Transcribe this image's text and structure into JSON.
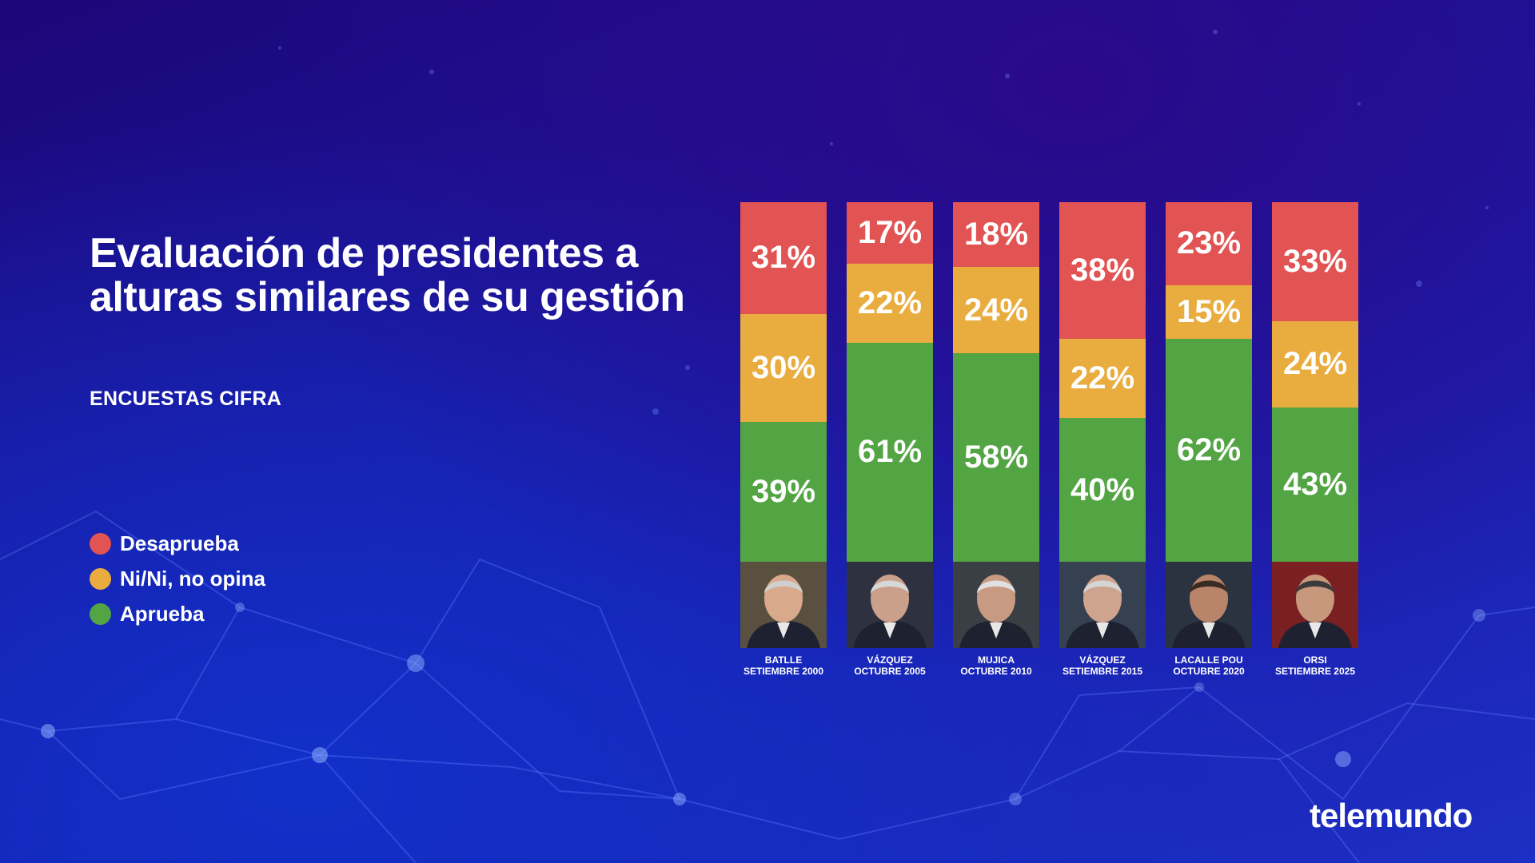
{
  "title": "Evaluación de presidentes a alturas similares de su gestión",
  "subtitle": "ENCUESTAS CIFRA",
  "brand": "telemundo",
  "colors": {
    "desaprueba": "#e25353",
    "ni_ni": "#e8ad3e",
    "aprueba": "#53a443"
  },
  "legend": [
    {
      "label": "Desaprueba",
      "color": "#e25353"
    },
    {
      "label": "Ni/Ni, no opina",
      "color": "#e8ad3e"
    },
    {
      "label": "Aprueba",
      "color": "#53a443"
    }
  ],
  "chart_data": {
    "type": "bar",
    "stacked": true,
    "orientation": "vertical",
    "unit": "%",
    "categories": [
      {
        "name": "BATLLE",
        "date": "SETIEMBRE 2000"
      },
      {
        "name": "VÁZQUEZ",
        "date": "OCTUBRE 2005"
      },
      {
        "name": "MUJICA",
        "date": "OCTUBRE 2010"
      },
      {
        "name": "VÁZQUEZ",
        "date": "SETIEMBRE 2015"
      },
      {
        "name": "LACALLE POU",
        "date": "OCTUBRE 2020"
      },
      {
        "name": "ORSI",
        "date": "SETIEMBRE 2025"
      }
    ],
    "series": [
      {
        "name": "Desaprueba",
        "values": [
          31,
          17,
          18,
          38,
          23,
          33
        ]
      },
      {
        "name": "Ni/Ni, no opina",
        "values": [
          30,
          22,
          24,
          22,
          15,
          24
        ]
      },
      {
        "name": "Aprueba",
        "values": [
          39,
          61,
          58,
          40,
          62,
          43
        ]
      }
    ],
    "legend_position": "left",
    "ylim": [
      0,
      100
    ]
  }
}
